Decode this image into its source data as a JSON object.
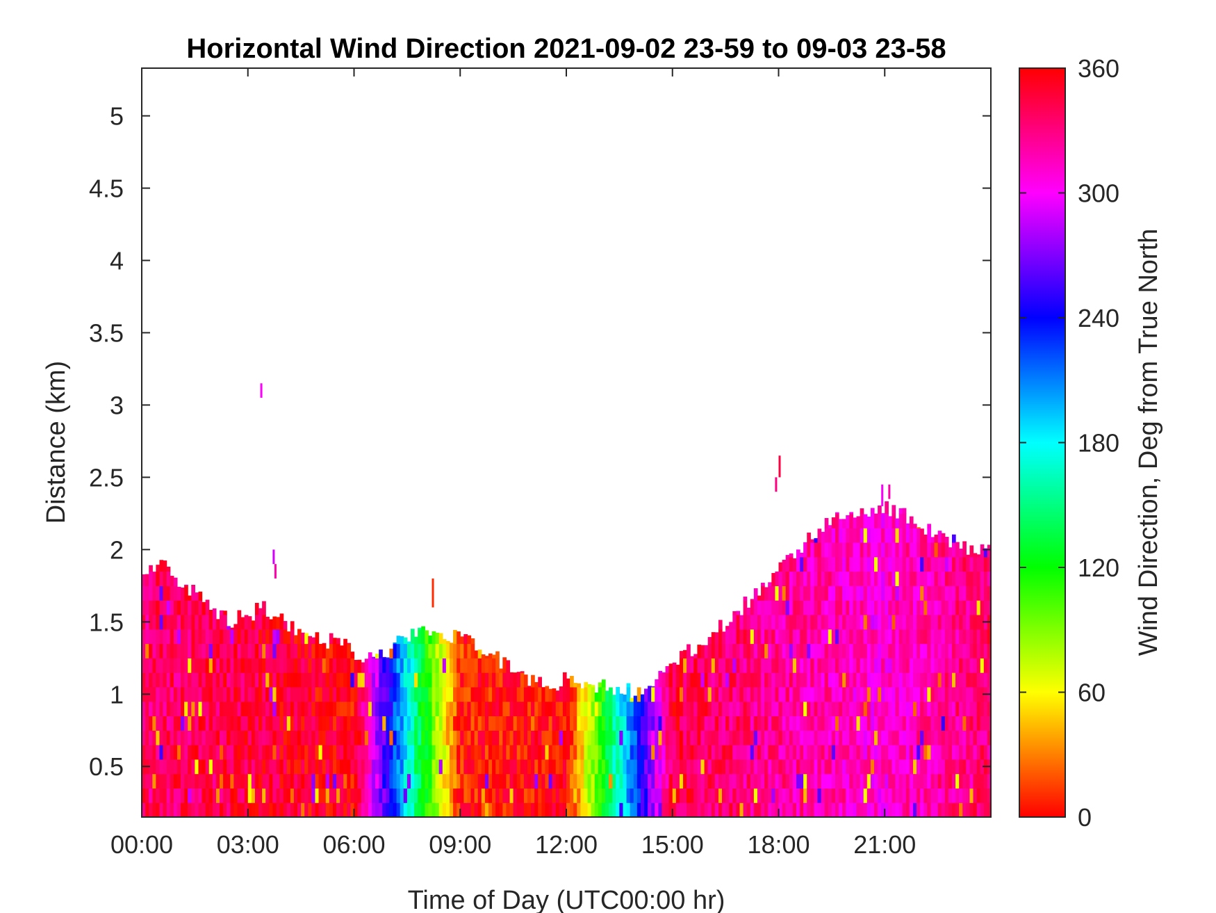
{
  "chart_data": {
    "type": "heatmap",
    "title": "Horizontal Wind Direction 2021-09-02 23-59 to 09-03 23-58",
    "xlabel": "Time of Day (UTC00:00 hr)",
    "ylabel": "Distance (km)",
    "xlim": [
      0,
      24
    ],
    "ylim": [
      0.15,
      5.33
    ],
    "x_ticks": [
      {
        "value": 0,
        "label": "00:00"
      },
      {
        "value": 3,
        "label": "03:00"
      },
      {
        "value": 6,
        "label": "06:00"
      },
      {
        "value": 9,
        "label": "09:00"
      },
      {
        "value": 12,
        "label": "12:00"
      },
      {
        "value": 15,
        "label": "15:00"
      },
      {
        "value": 18,
        "label": "18:00"
      },
      {
        "value": 21,
        "label": "21:00"
      }
    ],
    "y_ticks": [
      {
        "value": 0.5,
        "label": "0.5"
      },
      {
        "value": 1,
        "label": "1"
      },
      {
        "value": 1.5,
        "label": "1.5"
      },
      {
        "value": 2,
        "label": "2"
      },
      {
        "value": 2.5,
        "label": "2.5"
      },
      {
        "value": 3,
        "label": "3"
      },
      {
        "value": 3.5,
        "label": "3.5"
      },
      {
        "value": 4,
        "label": "4"
      },
      {
        "value": 4.5,
        "label": "4.5"
      },
      {
        "value": 5,
        "label": "5"
      }
    ],
    "colorbar": {
      "label": "Wind Direction, Deg from True North",
      "range": [
        0,
        360
      ],
      "ticks": [
        {
          "value": 0,
          "label": "0"
        },
        {
          "value": 60,
          "label": "60"
        },
        {
          "value": 120,
          "label": "120"
        },
        {
          "value": 180,
          "label": "180"
        },
        {
          "value": 240,
          "label": "240"
        },
        {
          "value": 300,
          "label": "300"
        },
        {
          "value": 360,
          "label": "360"
        }
      ],
      "colormap": "hsv"
    },
    "grid": false,
    "data_top_profile": {
      "hours": [
        0,
        0.5,
        1,
        1.5,
        2,
        2.5,
        3,
        3.5,
        4,
        4.5,
        5,
        5.5,
        6,
        6.5,
        7,
        7.5,
        8,
        8.5,
        9,
        9.5,
        10,
        10.5,
        11,
        11.5,
        12,
        12.5,
        13,
        13.5,
        14,
        14.5,
        15,
        15.5,
        16,
        16.5,
        17,
        17.5,
        18,
        18.5,
        19,
        19.5,
        20,
        20.5,
        21,
        21.5,
        22,
        22.5,
        23,
        23.5,
        24
      ],
      "top_km": [
        1.8,
        1.9,
        1.8,
        1.7,
        1.6,
        1.5,
        1.55,
        1.6,
        1.5,
        1.45,
        1.4,
        1.35,
        1.3,
        1.25,
        1.3,
        1.4,
        1.45,
        1.4,
        1.4,
        1.3,
        1.25,
        1.2,
        1.1,
        1.05,
        1.1,
        1.1,
        1.05,
        1.05,
        1.0,
        1.1,
        1.2,
        1.3,
        1.4,
        1.5,
        1.6,
        1.75,
        1.85,
        2.0,
        2.1,
        2.2,
        2.2,
        2.25,
        2.3,
        2.25,
        2.15,
        2.1,
        2.05,
        2.0,
        2.0
      ]
    },
    "dominant_direction_deg": {
      "hours": [
        0,
        3,
        6,
        9,
        12,
        15,
        18,
        21,
        24
      ],
      "deg": [
        335,
        345,
        358,
        5,
        0,
        345,
        325,
        310,
        335
      ]
    },
    "approx_range_deg": [
      0,
      360
    ]
  }
}
